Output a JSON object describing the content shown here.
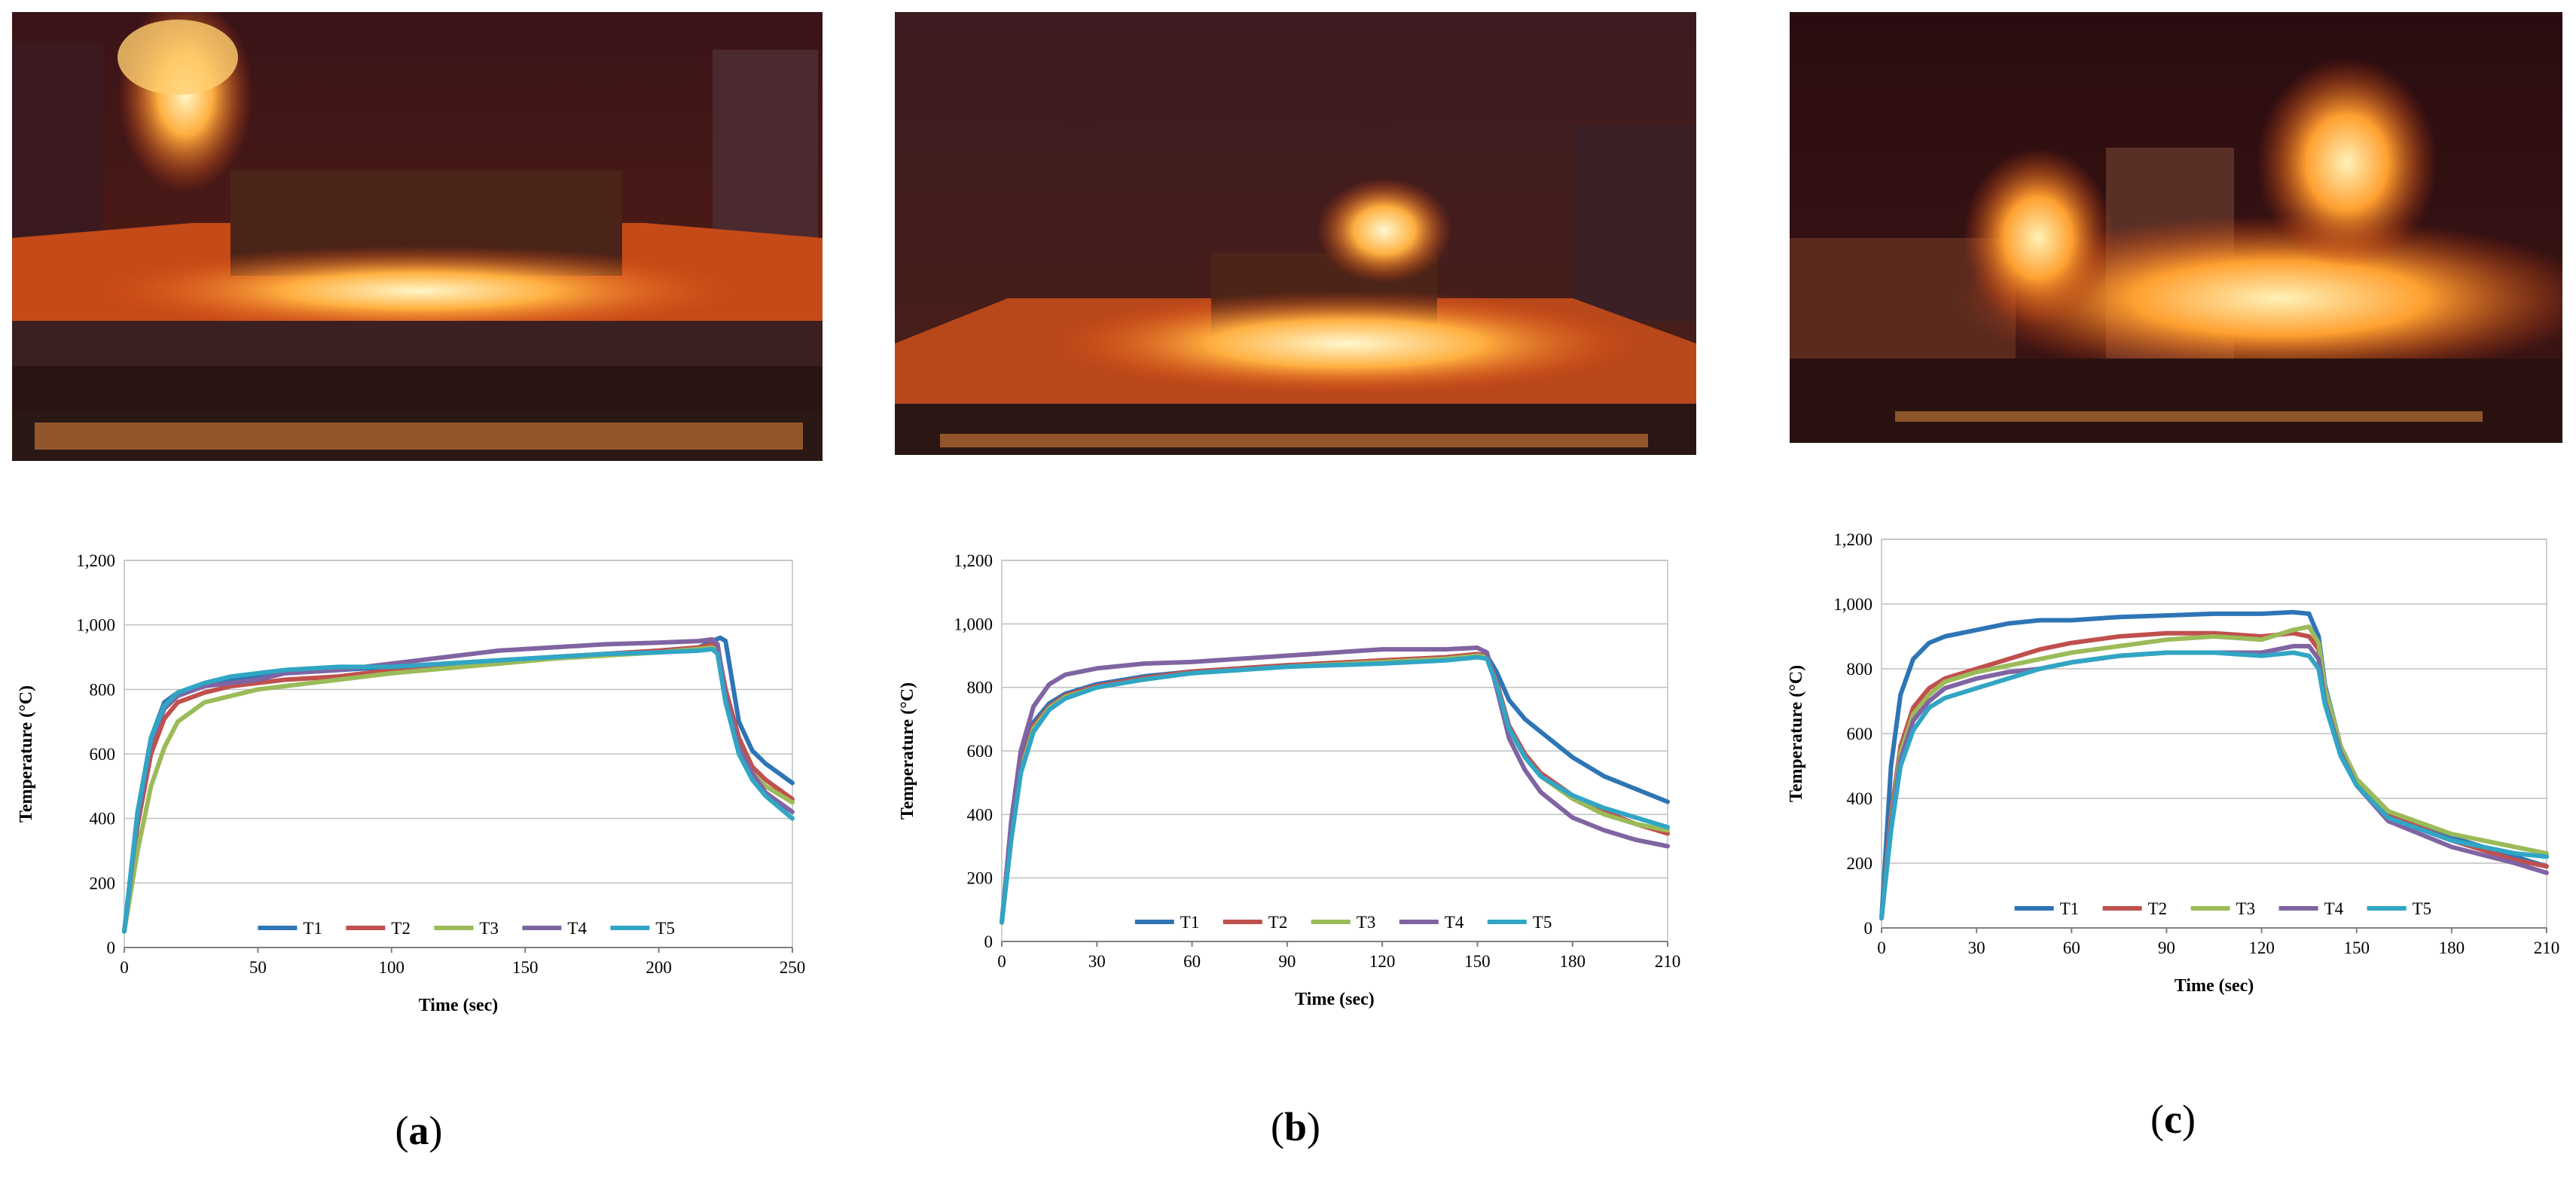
{
  "panels": [
    {
      "caption_open": "(",
      "caption_letter": "a",
      "caption_close": ")",
      "photo_name": "fire-test-photo-a",
      "chart_data": {
        "type": "line",
        "xlabel": "Time (sec)",
        "ylabel": "Temperature (°C)",
        "xlim": [
          0,
          250
        ],
        "ylim": [
          0,
          1200
        ],
        "xticks": [
          0,
          50,
          100,
          150,
          200,
          250
        ],
        "yticks": [
          0,
          200,
          400,
          600,
          800,
          1000,
          1200
        ],
        "ytick_labels": [
          "0",
          "200",
          "400",
          "600",
          "800",
          "1,000",
          "1,200"
        ],
        "grid": true,
        "legend_position": "bottom",
        "series": [
          {
            "name": "T1",
            "color": "#2e75b6",
            "x": [
              0,
              5,
              10,
              15,
              20,
              30,
              40,
              50,
              60,
              80,
              100,
              120,
              140,
              160,
              180,
              200,
              215,
              220,
              223,
              225,
              228,
              230,
              235,
              240,
              250
            ],
            "y": [
              50,
              420,
              650,
              760,
              790,
              810,
              830,
              840,
              850,
              860,
              870,
              880,
              890,
              900,
              910,
              920,
              930,
              950,
              960,
              950,
              800,
              700,
              610,
              570,
              510
            ]
          },
          {
            "name": "T2",
            "color": "#c0504d",
            "x": [
              0,
              5,
              10,
              15,
              20,
              30,
              40,
              50,
              60,
              80,
              100,
              120,
              140,
              160,
              180,
              200,
              215,
              220,
              222,
              225,
              230,
              235,
              240,
              250
            ],
            "y": [
              50,
              380,
              600,
              710,
              760,
              790,
              810,
              820,
              830,
              840,
              860,
              870,
              880,
              900,
              910,
              920,
              930,
              940,
              930,
              800,
              650,
              560,
              520,
              460
            ]
          },
          {
            "name": "T3",
            "color": "#9bbb59",
            "x": [
              0,
              5,
              10,
              15,
              20,
              30,
              40,
              50,
              60,
              80,
              100,
              120,
              140,
              160,
              180,
              200,
              215,
              220,
              222,
              225,
              230,
              235,
              240,
              250
            ],
            "y": [
              50,
              300,
              500,
              620,
              700,
              760,
              780,
              800,
              810,
              830,
              850,
              865,
              880,
              895,
              905,
              915,
              925,
              930,
              920,
              780,
              620,
              540,
              500,
              450
            ]
          },
          {
            "name": "T4",
            "color": "#8064a2",
            "x": [
              0,
              5,
              10,
              15,
              20,
              30,
              40,
              50,
              60,
              80,
              100,
              120,
              140,
              160,
              180,
              200,
              215,
              220,
              222,
              225,
              230,
              235,
              240,
              250
            ],
            "y": [
              50,
              400,
              640,
              740,
              780,
              810,
              820,
              830,
              850,
              860,
              880,
              900,
              920,
              930,
              940,
              945,
              950,
              955,
              940,
              780,
              620,
              540,
              480,
              420
            ]
          },
          {
            "name": "T5",
            "color": "#31a5c4",
            "x": [
              0,
              5,
              10,
              15,
              20,
              30,
              40,
              50,
              60,
              80,
              100,
              120,
              140,
              160,
              180,
              200,
              215,
              220,
              222,
              225,
              230,
              235,
              240,
              250
            ],
            "y": [
              50,
              420,
              650,
              750,
              790,
              820,
              840,
              850,
              860,
              870,
              870,
              880,
              890,
              900,
              910,
              915,
              920,
              925,
              910,
              760,
              600,
              520,
              470,
              400
            ]
          }
        ]
      }
    },
    {
      "caption_open": "(",
      "caption_letter": "b",
      "caption_close": ")",
      "photo_name": "fire-test-photo-b",
      "chart_data": {
        "type": "line",
        "xlabel": "Time (sec)",
        "ylabel": "Temperature (°C)",
        "xlim": [
          0,
          210
        ],
        "ylim": [
          0,
          1200
        ],
        "xticks": [
          0,
          30,
          60,
          90,
          120,
          150,
          180,
          210
        ],
        "yticks": [
          0,
          200,
          400,
          600,
          800,
          1000,
          1200
        ],
        "ytick_labels": [
          "0",
          "200",
          "400",
          "600",
          "800",
          "1,000",
          "1,200"
        ],
        "grid": true,
        "legend_position": "bottom",
        "series": [
          {
            "name": "T1",
            "color": "#2e75b6",
            "x": [
              0,
              3,
              6,
              10,
              15,
              20,
              30,
              45,
              60,
              90,
              120,
              140,
              150,
              153,
              156,
              160,
              165,
              170,
              180,
              190,
              200,
              210
            ],
            "y": [
              60,
              350,
              560,
              690,
              750,
              780,
              810,
              835,
              850,
              870,
              880,
              890,
              900,
              900,
              850,
              760,
              700,
              660,
              580,
              520,
              480,
              440
            ]
          },
          {
            "name": "T2",
            "color": "#c0504d",
            "x": [
              0,
              3,
              6,
              10,
              15,
              20,
              30,
              45,
              60,
              90,
              120,
              140,
              150,
              153,
              156,
              160,
              165,
              170,
              180,
              190,
              200,
              210
            ],
            "y": [
              60,
              340,
              550,
              680,
              740,
              775,
              805,
              830,
              850,
              870,
              885,
              895,
              905,
              900,
              820,
              680,
              590,
              530,
              460,
              410,
              370,
              340
            ]
          },
          {
            "name": "T3",
            "color": "#9bbb59",
            "x": [
              0,
              3,
              6,
              10,
              15,
              20,
              30,
              45,
              60,
              90,
              120,
              140,
              150,
              153,
              156,
              160,
              165,
              170,
              180,
              190,
              200,
              210
            ],
            "y": [
              60,
              330,
              540,
              670,
              735,
              770,
              800,
              825,
              845,
              865,
              880,
              890,
              900,
              895,
              810,
              670,
              580,
              520,
              450,
              400,
              370,
              350
            ]
          },
          {
            "name": "T4",
            "color": "#8064a2",
            "x": [
              0,
              3,
              6,
              10,
              15,
              20,
              30,
              45,
              60,
              90,
              120,
              140,
              150,
              153,
              156,
              160,
              165,
              170,
              180,
              190,
              200,
              210
            ],
            "y": [
              60,
              380,
              600,
              740,
              810,
              840,
              860,
              875,
              880,
              900,
              920,
              920,
              925,
              910,
              800,
              640,
              540,
              470,
              390,
              350,
              320,
              300
            ]
          },
          {
            "name": "T5",
            "color": "#31a5c4",
            "x": [
              0,
              3,
              6,
              10,
              15,
              20,
              30,
              45,
              60,
              90,
              120,
              140,
              150,
              153,
              156,
              160,
              165,
              170,
              180,
              190,
              200,
              210
            ],
            "y": [
              60,
              320,
              530,
              660,
              730,
              765,
              800,
              825,
              845,
              865,
              875,
              885,
              895,
              890,
              810,
              670,
              580,
              520,
              460,
              420,
              390,
              360
            ]
          }
        ]
      }
    },
    {
      "caption_open": "(",
      "caption_letter": "c",
      "caption_close": ")",
      "photo_name": "fire-test-photo-c",
      "chart_data": {
        "type": "line",
        "xlabel": "Time (sec)",
        "ylabel": "Temperature (°C)",
        "xlim": [
          0,
          210
        ],
        "ylim": [
          0,
          1200
        ],
        "xticks": [
          0,
          30,
          60,
          90,
          120,
          150,
          180,
          210
        ],
        "yticks": [
          0,
          200,
          400,
          600,
          800,
          1000,
          1200
        ],
        "ytick_labels": [
          "0",
          "200",
          "400",
          "600",
          "800",
          "1,000",
          "1,200"
        ],
        "grid": true,
        "legend_position": "bottom",
        "series": [
          {
            "name": "T1",
            "color": "#2e75b6",
            "x": [
              0,
              3,
              6,
              10,
              15,
              20,
              30,
              40,
              50,
              60,
              75,
              90,
              105,
              120,
              130,
              135,
              138,
              140,
              145,
              150,
              160,
              180,
              200,
              210
            ],
            "y": [
              30,
              500,
              720,
              830,
              880,
              900,
              920,
              940,
              950,
              950,
              960,
              965,
              970,
              970,
              975,
              970,
              900,
              750,
              560,
              460,
              360,
              280,
              220,
              190
            ]
          },
          {
            "name": "T2",
            "color": "#c0504d",
            "x": [
              0,
              3,
              6,
              10,
              15,
              20,
              30,
              40,
              50,
              60,
              75,
              90,
              105,
              120,
              130,
              135,
              138,
              140,
              145,
              150,
              160,
              180,
              200,
              210
            ],
            "y": [
              30,
              350,
              560,
              680,
              740,
              770,
              800,
              830,
              860,
              880,
              900,
              910,
              910,
              900,
              910,
              900,
              860,
              720,
              550,
              450,
              350,
              270,
              210,
              190
            ]
          },
          {
            "name": "T3",
            "color": "#9bbb59",
            "x": [
              0,
              3,
              6,
              10,
              15,
              20,
              30,
              40,
              50,
              60,
              75,
              90,
              105,
              120,
              130,
              135,
              138,
              140,
              145,
              150,
              160,
              180,
              200,
              210
            ],
            "y": [
              30,
              330,
              540,
              660,
              720,
              760,
              790,
              810,
              830,
              850,
              870,
              890,
              900,
              890,
              920,
              930,
              880,
              740,
              560,
              460,
              360,
              290,
              250,
              230
            ]
          },
          {
            "name": "T4",
            "color": "#8064a2",
            "x": [
              0,
              3,
              6,
              10,
              15,
              20,
              30,
              40,
              50,
              60,
              75,
              90,
              105,
              120,
              130,
              135,
              138,
              140,
              145,
              150,
              160,
              180,
              200,
              210
            ],
            "y": [
              30,
              320,
              520,
              640,
              700,
              740,
              770,
              790,
              800,
              820,
              840,
              850,
              850,
              850,
              870,
              870,
              830,
              700,
              540,
              440,
              330,
              250,
              200,
              170
            ]
          },
          {
            "name": "T5",
            "color": "#31a5c4",
            "x": [
              0,
              3,
              6,
              10,
              15,
              20,
              30,
              40,
              50,
              60,
              75,
              90,
              105,
              120,
              130,
              135,
              138,
              140,
              145,
              150,
              160,
              180,
              200,
              210
            ],
            "y": [
              30,
              300,
              500,
              610,
              680,
              710,
              740,
              770,
              800,
              820,
              840,
              850,
              850,
              840,
              850,
              840,
              800,
              690,
              530,
              440,
              340,
              270,
              230,
              220
            ]
          }
        ]
      }
    }
  ]
}
